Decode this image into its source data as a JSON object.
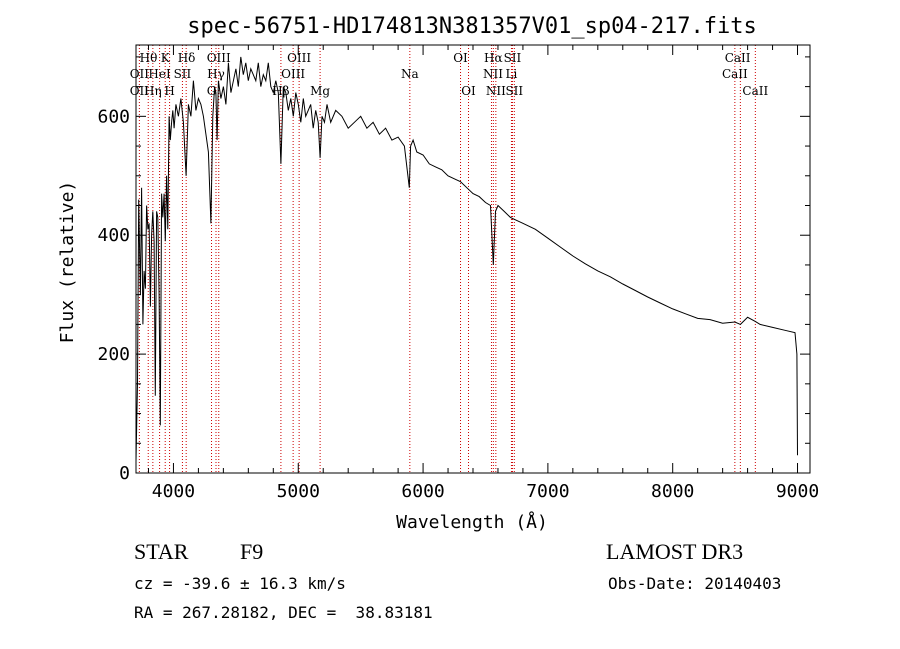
{
  "chart_data": {
    "type": "line",
    "title": "spec-56751-HD174813N381357V01_sp04-217.fits",
    "xlabel": "Wavelength (Å)",
    "ylabel": "Flux (relative)",
    "xlim": [
      3700,
      9100
    ],
    "ylim": [
      0,
      720
    ],
    "grid": false,
    "xticks": [
      "4000",
      "5000",
      "6000",
      "7000",
      "8000",
      "9000"
    ],
    "yticks": [
      "0",
      "200",
      "400",
      "600"
    ],
    "series": [
      {
        "name": "spectrum",
        "x": [
          3700,
          3712,
          3722,
          3735,
          3745,
          3755,
          3765,
          3775,
          3785,
          3795,
          3805,
          3815,
          3825,
          3835,
          3845,
          3855,
          3865,
          3875,
          3885,
          3895,
          3905,
          3915,
          3925,
          3935,
          3945,
          3955,
          3965,
          3975,
          3985,
          3995,
          4005,
          4020,
          4040,
          4060,
          4080,
          4101,
          4120,
          4140,
          4160,
          4180,
          4200,
          4220,
          4240,
          4260,
          4280,
          4300,
          4315,
          4330,
          4340,
          4350,
          4360,
          4380,
          4400,
          4420,
          4440,
          4460,
          4480,
          4500,
          4520,
          4540,
          4560,
          4580,
          4600,
          4620,
          4640,
          4660,
          4680,
          4700,
          4720,
          4740,
          4760,
          4780,
          4800,
          4820,
          4840,
          4861,
          4880,
          4900,
          4920,
          4940,
          4960,
          4980,
          5000,
          5020,
          5040,
          5060,
          5080,
          5100,
          5120,
          5140,
          5160,
          5175,
          5190,
          5210,
          5230,
          5260,
          5300,
          5350,
          5400,
          5450,
          5500,
          5550,
          5600,
          5650,
          5700,
          5750,
          5800,
          5850,
          5890,
          5900,
          5920,
          5950,
          6000,
          6050,
          6100,
          6150,
          6200,
          6250,
          6300,
          6350,
          6400,
          6450,
          6500,
          6540,
          6563,
          6580,
          6600,
          6650,
          6700,
          6750,
          6800,
          6900,
          7000,
          7100,
          7200,
          7300,
          7400,
          7500,
          7600,
          7700,
          7800,
          7900,
          8000,
          8100,
          8200,
          8300,
          8400,
          8498,
          8542,
          8600,
          8662,
          8700,
          8800,
          8900,
          8980,
          8995,
          9000
        ],
        "values": [
          20,
          150,
          460,
          300,
          480,
          250,
          340,
          310,
          450,
          410,
          420,
          280,
          400,
          440,
          390,
          130,
          440,
          430,
          300,
          80,
          470,
          430,
          470,
          390,
          500,
          410,
          600,
          560,
          590,
          610,
          580,
          620,
          600,
          630,
          590,
          500,
          620,
          600,
          660,
          610,
          630,
          620,
          600,
          570,
          540,
          420,
          600,
          650,
          640,
          560,
          660,
          630,
          650,
          620,
          690,
          640,
          660,
          680,
          650,
          700,
          670,
          690,
          660,
          680,
          670,
          660,
          690,
          650,
          670,
          660,
          690,
          650,
          640,
          660,
          640,
          520,
          650,
          640,
          610,
          630,
          600,
          640,
          620,
          590,
          630,
          600,
          610,
          620,
          580,
          610,
          590,
          530,
          600,
          590,
          620,
          590,
          610,
          600,
          580,
          590,
          600,
          580,
          590,
          570,
          580,
          560,
          565,
          550,
          480,
          550,
          560,
          540,
          535,
          520,
          515,
          510,
          500,
          495,
          490,
          480,
          470,
          465,
          455,
          450,
          350,
          440,
          450,
          440,
          430,
          425,
          420,
          410,
          395,
          380,
          365,
          352,
          340,
          330,
          318,
          307,
          296,
          286,
          276,
          268,
          260,
          258,
          252,
          254,
          250,
          262,
          255,
          250,
          245,
          240,
          236,
          200,
          30
        ]
      }
    ],
    "line_markers": [
      {
        "name": "OII",
        "wavelength": 3727
      },
      {
        "name": "Hθ",
        "wavelength": 3798
      },
      {
        "name": "Hη",
        "wavelength": 3835
      },
      {
        "name": "HeI",
        "wavelength": 3889
      },
      {
        "name": "K",
        "wavelength": 3934
      },
      {
        "name": "H",
        "wavelength": 3969
      },
      {
        "name": "SII",
        "wavelength": 4072
      },
      {
        "name": "Hδ",
        "wavelength": 4102
      },
      {
        "name": "G",
        "wavelength": 4305
      },
      {
        "name": "Hγ",
        "wavelength": 4341
      },
      {
        "name": "OIII",
        "wavelength": 4363
      },
      {
        "name": "Hβ",
        "wavelength": 4861
      },
      {
        "name": "OIII",
        "wavelength": 4959
      },
      {
        "name": "OIII",
        "wavelength": 5007
      },
      {
        "name": "Mg",
        "wavelength": 5175
      },
      {
        "name": "Na",
        "wavelength": 5894
      },
      {
        "name": "OI",
        "wavelength": 6300
      },
      {
        "name": "OI",
        "wavelength": 6364
      },
      {
        "name": "NII",
        "wavelength": 6548
      },
      {
        "name": "Hα",
        "wavelength": 6563
      },
      {
        "name": "NII",
        "wavelength": 6583
      },
      {
        "name": "Li",
        "wavelength": 6708
      },
      {
        "name": "SII",
        "wavelength": 6716
      },
      {
        "name": "SII",
        "wavelength": 6731
      },
      {
        "name": "CaII",
        "wavelength": 8498
      },
      {
        "name": "CaII",
        "wavelength": 8542
      },
      {
        "name": "CaII",
        "wavelength": 8662
      }
    ],
    "marker_labels": [
      {
        "text": "Hθ",
        "wavelength": 3800,
        "row": 1
      },
      {
        "text": "K",
        "wavelength": 3934,
        "row": 1
      },
      {
        "text": "Hδ",
        "wavelength": 4105,
        "row": 1
      },
      {
        "text": "OIII",
        "wavelength": 4363,
        "row": 1
      },
      {
        "text": "OIII",
        "wavelength": 5007,
        "row": 1
      },
      {
        "text": "OI",
        "wavelength": 6300,
        "row": 1
      },
      {
        "text": "Hα",
        "wavelength": 6563,
        "row": 1
      },
      {
        "text": "SII",
        "wavelength": 6716,
        "row": 1
      },
      {
        "text": "CaII",
        "wavelength": 8520,
        "row": 1
      },
      {
        "text": "OII",
        "wavelength": 3727,
        "row": 2
      },
      {
        "text": "HeI",
        "wavelength": 3889,
        "row": 2
      },
      {
        "text": "SII",
        "wavelength": 4072,
        "row": 2
      },
      {
        "text": "Hγ",
        "wavelength": 4341,
        "row": 2
      },
      {
        "text": "OIII",
        "wavelength": 4959,
        "row": 2
      },
      {
        "text": "Na",
        "wavelength": 5894,
        "row": 2
      },
      {
        "text": "NII",
        "wavelength": 6560,
        "row": 2
      },
      {
        "text": "Li",
        "wavelength": 6708,
        "row": 2
      },
      {
        "text": "CaII",
        "wavelength": 8498,
        "row": 2
      },
      {
        "text": "OII",
        "wavelength": 3727,
        "row": 3
      },
      {
        "text": "Hη",
        "wavelength": 3835,
        "row": 3
      },
      {
        "text": "H",
        "wavelength": 3969,
        "row": 3
      },
      {
        "text": "G",
        "wavelength": 4305,
        "row": 3
      },
      {
        "text": "Hβ",
        "wavelength": 4861,
        "row": 3
      },
      {
        "text": "Mg",
        "wavelength": 5175,
        "row": 3
      },
      {
        "text": "OI",
        "wavelength": 6364,
        "row": 3
      },
      {
        "text": "NII",
        "wavelength": 6583,
        "row": 3
      },
      {
        "text": "SII",
        "wavelength": 6731,
        "row": 3
      },
      {
        "text": "CaII",
        "wavelength": 8662,
        "row": 3
      }
    ],
    "colors": {
      "spectrum": "#000000",
      "marker": "#cc0000",
      "axes": "#000000"
    }
  },
  "info": {
    "object_type": "STAR",
    "subclass": "F9",
    "survey": "LAMOST DR3",
    "redshift_text": "cz = -39.6 ± 16.3 km/s",
    "obs_date": "Obs-Date: 20140403",
    "coords": "RA = 267.28182, DEC =  38.83181"
  }
}
